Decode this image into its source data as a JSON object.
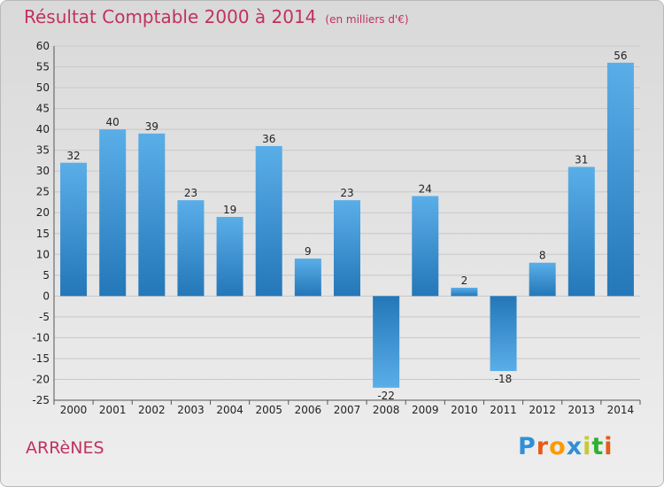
{
  "header": {
    "title": "Résultat Comptable 2000 à 2014",
    "unit": "(en milliers d'€)"
  },
  "footer": {
    "commune": "ARRèNES",
    "brand_letters": [
      "P",
      "r",
      "o",
      "x",
      "i",
      "t",
      "i"
    ],
    "brand_colors": [
      "#2f8fd8",
      "#e65a1a",
      "#ff9900",
      "#2f8fd8",
      "#c8c83a",
      "#2fb02f",
      "#e65a1a"
    ]
  },
  "colors": {
    "title": "#c0325c",
    "bar_light": "#5aaee8",
    "bar_dark": "#2477b8",
    "grid": "#c8c8c8",
    "axis_text": "#222222"
  },
  "chart_data": {
    "type": "bar",
    "categories": [
      "2000",
      "2001",
      "2002",
      "2003",
      "2004",
      "2005",
      "2006",
      "2007",
      "2008",
      "2009",
      "2010",
      "2011",
      "2012",
      "2013",
      "2014"
    ],
    "values": [
      32,
      40,
      39,
      23,
      19,
      36,
      9,
      23,
      -22,
      24,
      2,
      -18,
      8,
      31,
      56
    ],
    "ylim": [
      -25,
      60
    ],
    "yticks": [
      60,
      55,
      50,
      45,
      40,
      35,
      30,
      25,
      20,
      15,
      10,
      5,
      0,
      -5,
      -10,
      -15,
      -20,
      -25
    ],
    "grid": true,
    "title": "Résultat Comptable 2000 à 2014",
    "xlabel": "",
    "ylabel": ""
  }
}
